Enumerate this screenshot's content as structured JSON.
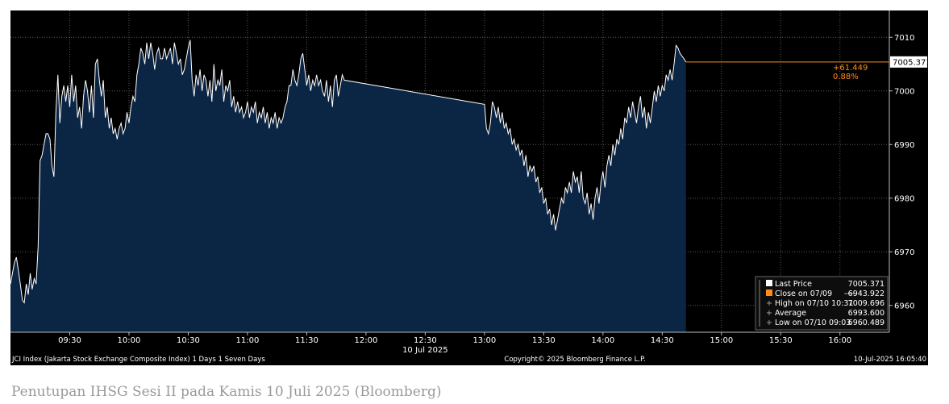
{
  "caption": "Penutupan IHSG Sesi II pada Kamis 10 Juli 2025 (Bloomberg)",
  "chart_data": {
    "type": "area",
    "x_ticks": [
      {
        "t": 90,
        "label": "09:30"
      },
      {
        "t": 120,
        "label": "10:00"
      },
      {
        "t": 150,
        "label": "10:30"
      },
      {
        "t": 180,
        "label": "11:00"
      },
      {
        "t": 210,
        "label": "11:30"
      },
      {
        "t": 240,
        "label": "12:00"
      },
      {
        "t": 270,
        "label": "12:30"
      },
      {
        "t": 300,
        "label": "13:00"
      },
      {
        "t": 330,
        "label": "13:30"
      },
      {
        "t": 360,
        "label": "14:00"
      },
      {
        "t": 390,
        "label": "14:30"
      },
      {
        "t": 420,
        "label": "15:00"
      },
      {
        "t": 450,
        "label": "15:30"
      },
      {
        "t": 480,
        "label": "16:00"
      }
    ],
    "x_date_label": "10 Jul 2025",
    "y_ticks": [
      6960,
      6970,
      6980,
      6990,
      7000,
      7010
    ],
    "ylim": [
      6955,
      7015
    ],
    "x_range": [
      60,
      505
    ],
    "series": [
      {
        "points": [
          [
            60,
            6964
          ],
          [
            62,
            6968
          ],
          [
            63,
            6969
          ],
          [
            65,
            6964
          ],
          [
            66,
            6961
          ],
          [
            67,
            6960.5
          ],
          [
            68,
            6964
          ],
          [
            69,
            6962
          ],
          [
            70,
            6966
          ],
          [
            71,
            6963
          ],
          [
            72,
            6965
          ],
          [
            73,
            6964
          ],
          [
            74,
            6971
          ],
          [
            75,
            6987
          ],
          [
            76,
            6988
          ],
          [
            77,
            6990
          ],
          [
            78,
            6992
          ],
          [
            79,
            6992
          ],
          [
            80,
            6991
          ],
          [
            81,
            6986
          ],
          [
            82,
            6984
          ],
          [
            83,
            6996
          ],
          [
            84,
            7003
          ],
          [
            85,
            6994
          ],
          [
            86,
            6999
          ],
          [
            87,
            7001
          ],
          [
            88,
            6998
          ],
          [
            89,
            7001
          ],
          [
            90,
            6997
          ],
          [
            91,
            7003
          ],
          [
            92,
            6998
          ],
          [
            93,
            7001
          ],
          [
            94,
            6995
          ],
          [
            95,
            6997
          ],
          [
            96,
            6993
          ],
          [
            97,
            6999
          ],
          [
            98,
            7002
          ],
          [
            99,
            7000
          ],
          [
            100,
            6996
          ],
          [
            101,
            7001
          ],
          [
            102,
            6995
          ],
          [
            103,
            7005
          ],
          [
            104,
            7006
          ],
          [
            105,
            7002
          ],
          [
            106,
            6999
          ],
          [
            107,
            7002
          ],
          [
            108,
            6995
          ],
          [
            109,
            6997
          ],
          [
            110,
            6993
          ],
          [
            111,
            6995
          ],
          [
            112,
            6992
          ],
          [
            113,
            6993
          ],
          [
            114,
            6991
          ],
          [
            115,
            6993
          ],
          [
            116,
            6994
          ],
          [
            117,
            6992
          ],
          [
            118,
            6993
          ],
          [
            119,
            6996
          ],
          [
            120,
            6994
          ],
          [
            121,
            6997
          ],
          [
            122,
            6999
          ],
          [
            123,
            6998
          ],
          [
            124,
            7003
          ],
          [
            125,
            7005
          ],
          [
            126,
            7008
          ],
          [
            127,
            7007
          ],
          [
            128,
            7005
          ],
          [
            129,
            7009
          ],
          [
            130,
            7006
          ],
          [
            131,
            7009
          ],
          [
            132,
            7007
          ],
          [
            133,
            7004
          ],
          [
            134,
            7007
          ],
          [
            135,
            7008
          ],
          [
            136,
            7006
          ],
          [
            137,
            7006
          ],
          [
            138,
            7008
          ],
          [
            139,
            7006
          ],
          [
            140,
            7007
          ],
          [
            141,
            7008
          ],
          [
            142,
            7005
          ],
          [
            143,
            7009
          ],
          [
            144,
            7007
          ],
          [
            145,
            7005
          ],
          [
            146,
            7006
          ],
          [
            147,
            7003
          ],
          [
            148,
            7004
          ],
          [
            149,
            7006
          ],
          [
            150,
            7008
          ],
          [
            151,
            7009.5
          ],
          [
            152,
            7002
          ],
          [
            153,
            6999
          ],
          [
            154,
            7003
          ],
          [
            155,
            7001
          ],
          [
            156,
            7004
          ],
          [
            157,
            7000
          ],
          [
            158,
            7003
          ],
          [
            159,
            7002
          ],
          [
            160,
            6999
          ],
          [
            161,
            7002
          ],
          [
            162,
            6998
          ],
          [
            163,
            7005
          ],
          [
            164,
            7000
          ],
          [
            165,
            7002
          ],
          [
            166,
            7001
          ],
          [
            167,
            7004
          ],
          [
            168,
            6998
          ],
          [
            169,
            7001
          ],
          [
            170,
            7000
          ],
          [
            171,
            7002
          ],
          [
            172,
            6997
          ],
          [
            173,
            6999
          ],
          [
            174,
            6996
          ],
          [
            175,
            6998
          ],
          [
            176,
            6996
          ],
          [
            177,
            6997
          ],
          [
            178,
            6995
          ],
          [
            179,
            6996
          ],
          [
            180,
            6998
          ],
          [
            181,
            6995
          ],
          [
            182,
            6997
          ],
          [
            183,
            6996
          ],
          [
            184,
            6998
          ],
          [
            185,
            6994
          ],
          [
            186,
            6996
          ],
          [
            187,
            6995
          ],
          [
            188,
            6997
          ],
          [
            189,
            6994
          ],
          [
            190,
            6996
          ],
          [
            191,
            6993
          ],
          [
            192,
            6995
          ],
          [
            193,
            6994
          ],
          [
            194,
            6996
          ],
          [
            195,
            6993
          ],
          [
            196,
            6995
          ],
          [
            197,
            6994
          ],
          [
            198,
            6995
          ],
          [
            199,
            6997
          ],
          [
            200,
            6998
          ],
          [
            201,
            7001
          ],
          [
            202,
            7001
          ],
          [
            203,
            7004
          ],
          [
            204,
            7002
          ],
          [
            205,
            7001
          ],
          [
            206,
            7003
          ],
          [
            207,
            7006
          ],
          [
            208,
            7007
          ],
          [
            209,
            7004
          ],
          [
            210,
            7001
          ],
          [
            211,
            7003
          ],
          [
            212,
            7000
          ],
          [
            213,
            7002
          ],
          [
            214,
            7001
          ],
          [
            215,
            7003
          ],
          [
            216,
            7001
          ],
          [
            217,
            7002
          ],
          [
            218,
            7000
          ],
          [
            219,
            6999
          ],
          [
            220,
            7002
          ],
          [
            221,
            6998
          ],
          [
            222,
            7001
          ],
          [
            223,
            6997
          ],
          [
            224,
            7002
          ],
          [
            225,
            7003
          ],
          [
            226,
            6999
          ],
          [
            227,
            7001
          ],
          [
            228,
            7003
          ],
          [
            229,
            7002
          ],
          [
            300,
            6997.5
          ],
          [
            301,
            6993
          ],
          [
            302,
            6992
          ],
          [
            303,
            6994
          ],
          [
            304,
            6998
          ],
          [
            305,
            6997
          ],
          [
            306,
            6995
          ],
          [
            307,
            6997
          ],
          [
            308,
            6994
          ],
          [
            309,
            6996
          ],
          [
            310,
            6993
          ],
          [
            311,
            6994
          ],
          [
            312,
            6992
          ],
          [
            313,
            6993
          ],
          [
            314,
            6990
          ],
          [
            315,
            6991
          ],
          [
            316,
            6989
          ],
          [
            317,
            6990
          ],
          [
            318,
            6988
          ],
          [
            319,
            6989
          ],
          [
            320,
            6986
          ],
          [
            321,
            6988
          ],
          [
            322,
            6984
          ],
          [
            323,
            6986
          ],
          [
            324,
            6985
          ],
          [
            325,
            6986
          ],
          [
            326,
            6983
          ],
          [
            327,
            6984
          ],
          [
            328,
            6981
          ],
          [
            329,
            6982
          ],
          [
            330,
            6979
          ],
          [
            331,
            6980
          ],
          [
            332,
            6977
          ],
          [
            333,
            6978
          ],
          [
            334,
            6975
          ],
          [
            335,
            6977
          ],
          [
            336,
            6974
          ],
          [
            337,
            6976
          ],
          [
            338,
            6978
          ],
          [
            339,
            6980
          ],
          [
            340,
            6979
          ],
          [
            341,
            6982
          ],
          [
            342,
            6981
          ],
          [
            343,
            6983
          ],
          [
            344,
            6981
          ],
          [
            345,
            6985
          ],
          [
            346,
            6983
          ],
          [
            347,
            6984
          ],
          [
            348,
            6981
          ],
          [
            349,
            6985
          ],
          [
            350,
            6980
          ],
          [
            351,
            6979
          ],
          [
            352,
            6981
          ],
          [
            353,
            6977
          ],
          [
            354,
            6979
          ],
          [
            355,
            6976
          ],
          [
            356,
            6980
          ],
          [
            357,
            6982
          ],
          [
            358,
            6979
          ],
          [
            359,
            6983
          ],
          [
            360,
            6985
          ],
          [
            361,
            6982
          ],
          [
            362,
            6986
          ],
          [
            363,
            6988
          ],
          [
            364,
            6986
          ],
          [
            365,
            6990
          ],
          [
            366,
            6988
          ],
          [
            367,
            6991
          ],
          [
            368,
            6990
          ],
          [
            369,
            6993
          ],
          [
            370,
            6991
          ],
          [
            371,
            6995
          ],
          [
            372,
            6994
          ],
          [
            373,
            6997
          ],
          [
            374,
            6995
          ],
          [
            375,
            6998
          ],
          [
            376,
            6996
          ],
          [
            377,
            6994
          ],
          [
            378,
            6997
          ],
          [
            379,
            6999
          ],
          [
            380,
            6995
          ],
          [
            381,
            6997
          ],
          [
            382,
            6993
          ],
          [
            383,
            6996
          ],
          [
            384,
            6994
          ],
          [
            385,
            6997
          ],
          [
            386,
            7000
          ],
          [
            387,
            6998
          ],
          [
            388,
            7001
          ],
          [
            389,
            6999
          ],
          [
            390,
            7001
          ],
          [
            391,
            7000
          ],
          [
            392,
            7003
          ],
          [
            393,
            7002
          ],
          [
            394,
            7004
          ],
          [
            395,
            7002
          ],
          [
            396,
            7005
          ],
          [
            397,
            7008.5
          ],
          [
            398,
            7008
          ],
          [
            399,
            7007
          ],
          [
            400,
            7006.5
          ],
          [
            401,
            7006
          ],
          [
            402,
            7005.4
          ]
        ]
      }
    ],
    "last_price_annotation": {
      "change": "+61.449",
      "pct": "0.88%",
      "last": "7005.371"
    },
    "legend": [
      {
        "label": "Last Price",
        "value": "7005.371",
        "marker": "white-square"
      },
      {
        "label": "Close on 07/09",
        "value": "6943.922",
        "marker": "orange-square",
        "dash": "----"
      },
      {
        "label": "High on 07/10 10:31",
        "value": "7009.696",
        "marker": "plus"
      },
      {
        "label": "Average",
        "value": "6993.600",
        "marker": "plus"
      },
      {
        "label": "Low on 07/10 09:03",
        "value": "6960.489",
        "marker": "plus"
      }
    ],
    "footer_left": "JCI Index (Jakarta Stock Exchange Composite Index) 1 Days 1 Seven Days",
    "footer_center": "Copyright© 2025 Bloomberg Finance L.P.",
    "footer_right": "10-Jul-2025 16:05:40",
    "colors": {
      "line": "#ffffff",
      "fill": "#0b2545",
      "background": "#000000",
      "grid": "#5a5a5a",
      "accent": "#ff8c1a"
    }
  }
}
